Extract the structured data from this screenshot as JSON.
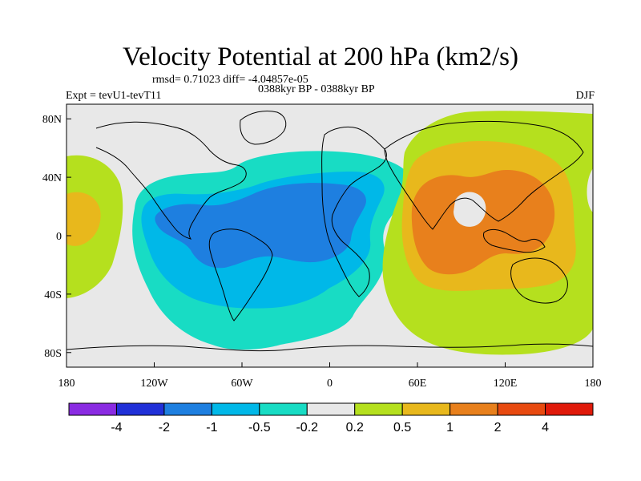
{
  "map": {
    "title": "Velocity Potential at 200 hPa (km2/s)",
    "stats": "rmsd= 0.71023 diff= -4.04857e-05",
    "experiment": "Expt = tevU1-tevT11",
    "period": "0388kyr BP - 0388kyr BP",
    "season": "DJF",
    "projection": "cylindrical equidistant",
    "lon_range": [
      -180,
      180
    ],
    "lat_range": [
      -90,
      90
    ],
    "lat_ticks": [
      {
        "value": 80,
        "label": "80N"
      },
      {
        "value": 40,
        "label": "40N"
      },
      {
        "value": 0,
        "label": "0"
      },
      {
        "value": -40,
        "label": "40S"
      },
      {
        "value": -80,
        "label": "80S"
      }
    ],
    "lon_ticks": [
      {
        "value": -180,
        "label": "180"
      },
      {
        "value": -120,
        "label": "120W"
      },
      {
        "value": -60,
        "label": "60W"
      },
      {
        "value": 0,
        "label": "0"
      },
      {
        "value": 60,
        "label": "60E"
      },
      {
        "value": 120,
        "label": "120E"
      },
      {
        "value": 180,
        "label": "180"
      }
    ],
    "regions": [
      {
        "name": "negative-anomaly-envelope",
        "level": "-0.5 to -0.2"
      },
      {
        "name": "negative-anomaly-mid",
        "level": "-1 to -0.5"
      },
      {
        "name": "negative-anomaly-core",
        "level": "-2 to -1"
      },
      {
        "name": "positive-anomaly-envelope",
        "level": "0.2 to 0.5"
      },
      {
        "name": "positive-anomaly-mid",
        "level": "0.5 to 1"
      },
      {
        "name": "positive-anomaly-core",
        "level": "1 to 2"
      },
      {
        "name": "dateline-positive-anomaly",
        "level": "0.2 to 1"
      }
    ]
  },
  "colorbar": {
    "boundaries": [
      -4,
      -2,
      -1,
      -0.5,
      -0.2,
      0.2,
      0.5,
      1,
      2,
      4
    ],
    "labels": [
      "-4",
      "-2",
      "-1",
      "-0.5",
      "-0.2",
      "0.2",
      "0.5",
      "1",
      "2",
      "4"
    ],
    "colors": [
      "#8a2be2",
      "#2030d8",
      "#1e7fe0",
      "#00b8e8",
      "#18dcc4",
      "#e8e8e8",
      "#b5e01e",
      "#e8b81c",
      "#e8801c",
      "#e84a10",
      "#e01a0a"
    ]
  }
}
